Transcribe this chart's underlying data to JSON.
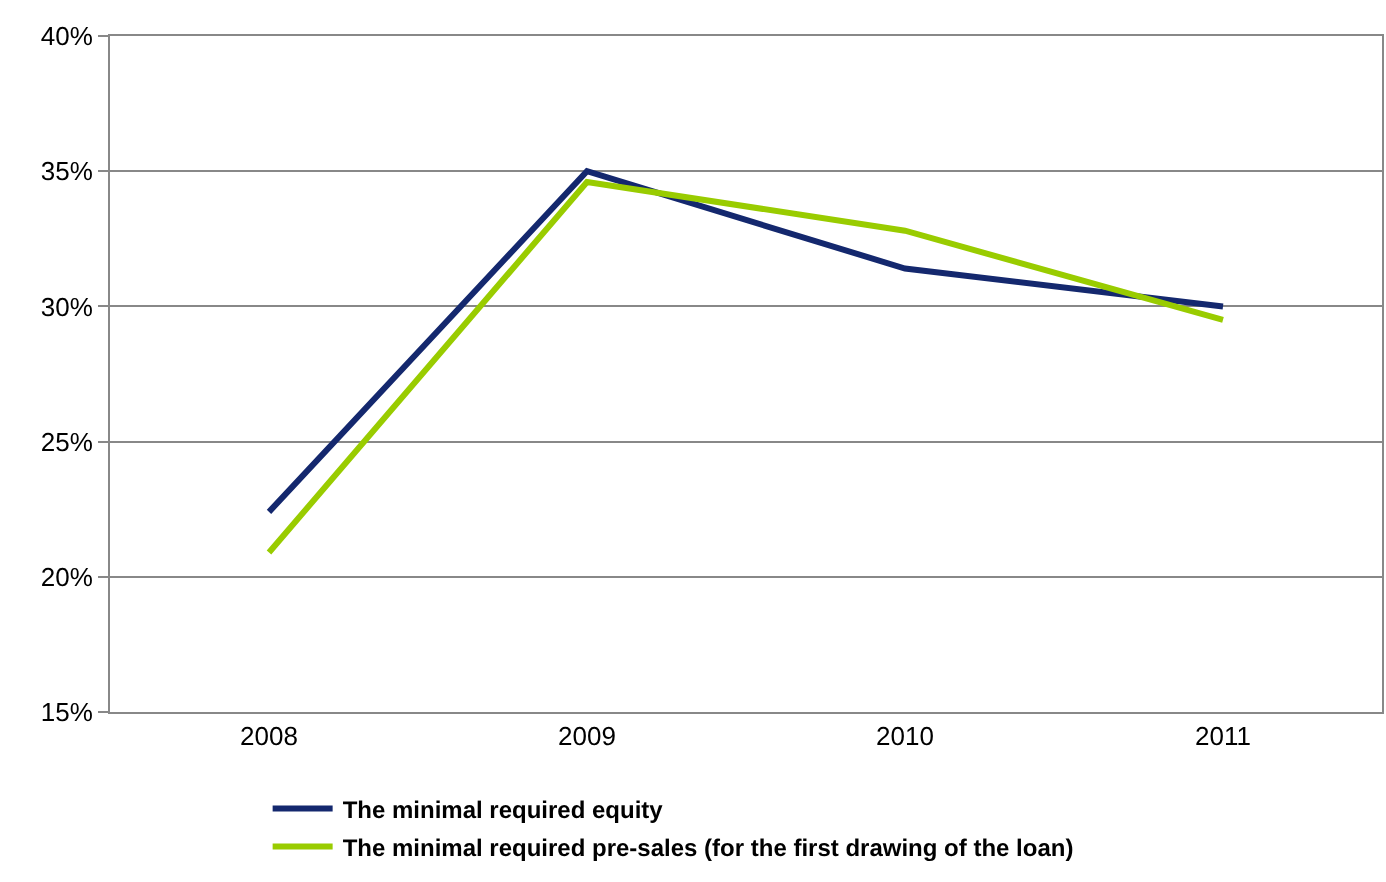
{
  "chart_data": {
    "type": "line",
    "categories": [
      "2008",
      "2009",
      "2010",
      "2011"
    ],
    "series": [
      {
        "name": "The minimal required equity",
        "color": "#14286e",
        "values": [
          22.4,
          35,
          31.4,
          30
        ]
      },
      {
        "name": "The minimal required pre-sales (for the first drawing of the loan)",
        "color": "#99cc00",
        "values": [
          20.9,
          34.6,
          32.8,
          29.5
        ]
      }
    ],
    "ylim": [
      15,
      40
    ],
    "yticks": [
      {
        "value": 15,
        "label": "15%"
      },
      {
        "value": 20,
        "label": "20%"
      },
      {
        "value": 25,
        "label": "25%"
      },
      {
        "value": 30,
        "label": "30%"
      },
      {
        "value": 35,
        "label": "35%"
      },
      {
        "value": 40,
        "label": "40%"
      }
    ],
    "grid": "y",
    "legend": "bottom",
    "marker": "none",
    "line_style": "solid"
  }
}
